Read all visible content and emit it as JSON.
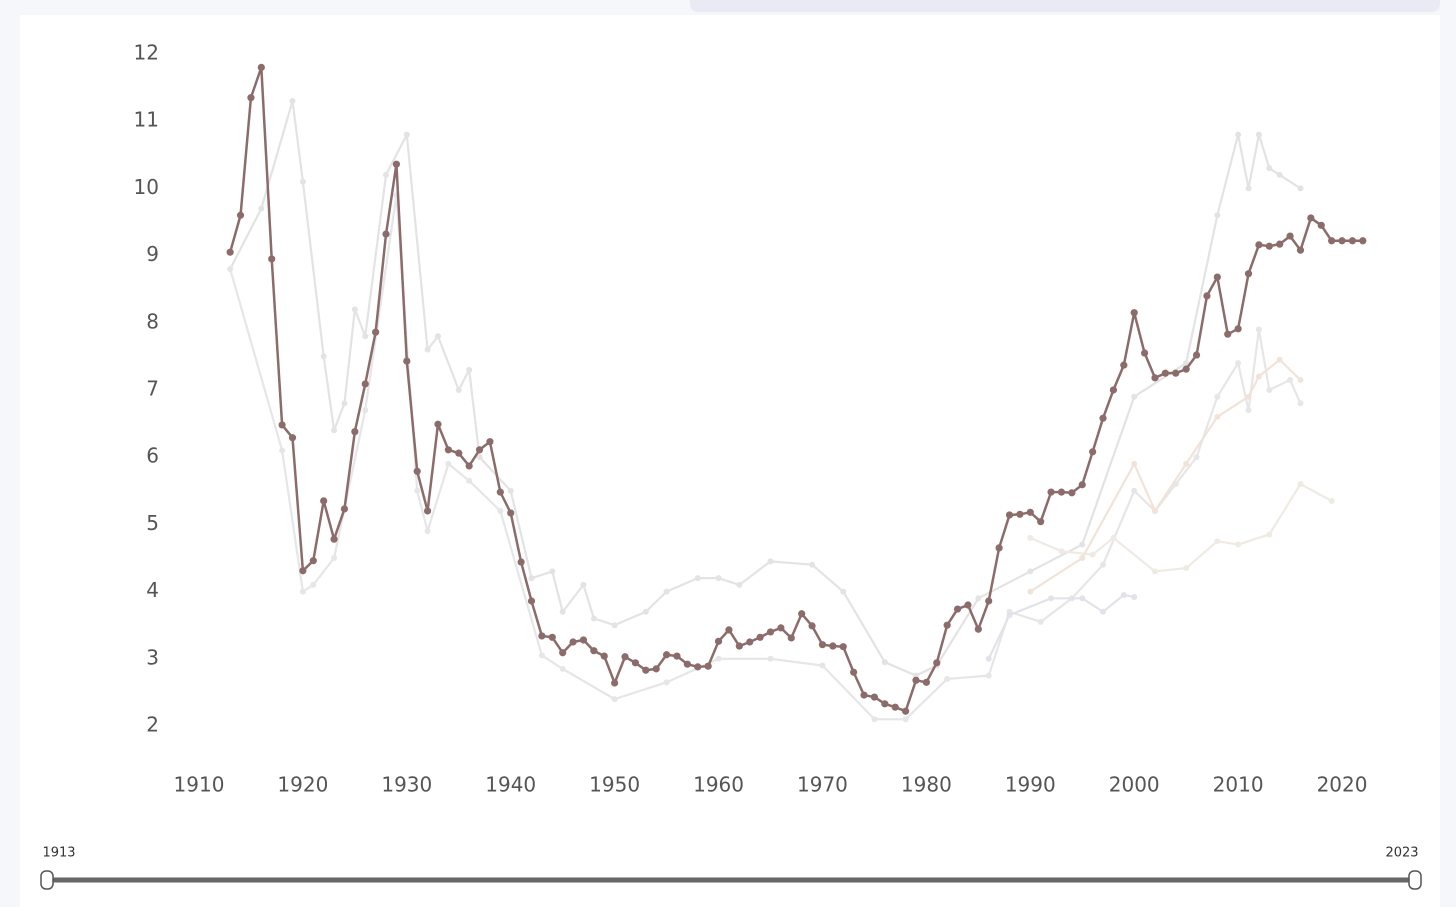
{
  "chart_data": {
    "type": "line",
    "xlim": [
      1907,
      2024
    ],
    "xticks": [
      1910,
      1920,
      1930,
      1940,
      1950,
      1960,
      1970,
      1980,
      1990,
      2000,
      2010,
      2020
    ],
    "ylim": [
      1.5,
      12.3
    ],
    "yticks": [
      2,
      3,
      4,
      5,
      6,
      7,
      8,
      9,
      10,
      11,
      12
    ],
    "series": [
      {
        "color": "#e3e3e3",
        "x": [
          1913,
          1916,
          1919,
          1920,
          1922,
          1923,
          1924,
          1925,
          1926,
          1928,
          1930,
          1932,
          1933,
          1935,
          1936,
          1937,
          1940,
          1942,
          1944,
          1945,
          1947,
          1948,
          1950,
          1953,
          1955,
          1958,
          1960,
          1962,
          1965,
          1969,
          1972,
          1976,
          1979,
          1981,
          1985,
          1990,
          1995,
          2000,
          2005,
          2008,
          2010,
          2011,
          2012,
          2013,
          2014,
          2016
        ],
        "values": [
          8.8,
          9.7,
          11.3,
          10.1,
          7.5,
          6.4,
          6.8,
          8.2,
          7.8,
          10.2,
          10.8,
          7.6,
          7.8,
          7.0,
          7.3,
          6.0,
          5.5,
          4.2,
          4.3,
          3.7,
          4.1,
          3.6,
          3.5,
          3.7,
          4.0,
          4.2,
          4.2,
          4.1,
          4.45,
          4.4,
          4.0,
          2.95,
          2.75,
          2.9,
          3.9,
          4.3,
          4.7,
          6.9,
          7.4,
          9.6,
          10.8,
          10.0,
          10.8,
          10.3,
          10.2,
          10.0
        ]
      },
      {
        "color": "#e6e6e8",
        "x": [
          1913,
          1918,
          1920,
          1921,
          1923,
          1926,
          1929,
          1931,
          1932,
          1934,
          1936,
          1939,
          1943,
          1945,
          1950,
          1955,
          1960,
          1965,
          1970,
          1975,
          1978,
          1982,
          1986,
          1988,
          1991,
          1994,
          1997,
          2000,
          2002,
          2004,
          2006,
          2008,
          2010,
          2011,
          2012,
          2013,
          2015,
          2016
        ],
        "values": [
          8.8,
          6.1,
          4.0,
          4.1,
          4.5,
          6.7,
          9.9,
          5.5,
          4.9,
          5.9,
          5.65,
          5.2,
          3.05,
          2.85,
          2.4,
          2.65,
          3.0,
          3.0,
          2.9,
          2.1,
          2.1,
          2.7,
          2.75,
          3.7,
          3.55,
          3.9,
          4.4,
          5.5,
          5.2,
          5.6,
          6.0,
          6.9,
          7.4,
          6.7,
          7.9,
          7.0,
          7.15,
          6.8
        ]
      },
      {
        "color": "#efebe3",
        "x": [
          1990,
          1993,
          1996,
          1998,
          2002,
          2005,
          2008,
          2010,
          2013,
          2016,
          2019
        ],
        "values": [
          4.8,
          4.6,
          4.55,
          4.8,
          4.3,
          4.35,
          4.75,
          4.7,
          4.85,
          5.6,
          5.35
        ]
      },
      {
        "color": "#e2e3ea",
        "x": [
          1986,
          1988,
          1992,
          1995,
          1997,
          1999,
          2000
        ],
        "values": [
          3.0,
          3.65,
          3.9,
          3.9,
          3.7,
          3.95,
          3.92
        ]
      },
      {
        "color": "#f1e3d8",
        "x": [
          1990,
          1995,
          2000,
          2002,
          2005,
          2008,
          2011,
          2012,
          2014,
          2016
        ],
        "values": [
          4.0,
          4.5,
          5.9,
          5.2,
          5.9,
          6.6,
          6.9,
          7.2,
          7.45,
          7.15
        ]
      },
      {
        "color": "#8c6b6b",
        "x": [
          1913,
          1914,
          1915,
          1916,
          1917,
          1918,
          1919,
          1920,
          1921,
          1922,
          1923,
          1924,
          1925,
          1926,
          1927,
          1928,
          1929,
          1930,
          1931,
          1932,
          1933,
          1934,
          1935,
          1936,
          1937,
          1938,
          1939,
          1940,
          1941,
          1942,
          1943,
          1944,
          1945,
          1946,
          1947,
          1948,
          1949,
          1950,
          1951,
          1952,
          1953,
          1954,
          1955,
          1956,
          1957,
          1958,
          1959,
          1960,
          1961,
          1962,
          1963,
          1964,
          1965,
          1966,
          1967,
          1968,
          1969,
          1970,
          1971,
          1972,
          1973,
          1974,
          1975,
          1976,
          1977,
          1978,
          1979,
          1980,
          1981,
          1982,
          1983,
          1984,
          1985,
          1986,
          1987,
          1988,
          1989,
          1990,
          1991,
          1992,
          1993,
          1994,
          1995,
          1996,
          1997,
          1998,
          1999,
          2000,
          2001,
          2002,
          2003,
          2004,
          2005,
          2006,
          2007,
          2008,
          2009,
          2010,
          2011,
          2012,
          2013,
          2014,
          2015,
          2016,
          2017,
          2018,
          2019,
          2020,
          2021,
          2022
        ],
        "values": [
          9.05,
          9.6,
          11.35,
          11.8,
          8.95,
          6.48,
          6.29,
          4.31,
          4.46,
          5.35,
          4.78,
          5.23,
          6.38,
          7.09,
          7.86,
          9.32,
          10.36,
          7.43,
          5.79,
          5.2,
          6.49,
          6.11,
          6.06,
          5.87,
          6.11,
          6.23,
          5.48,
          5.17,
          4.44,
          3.86,
          3.34,
          3.32,
          3.09,
          3.25,
          3.28,
          3.12,
          3.04,
          2.64,
          3.03,
          2.94,
          2.83,
          2.85,
          3.06,
          3.04,
          2.92,
          2.88,
          2.89,
          3.26,
          3.43,
          3.19,
          3.25,
          3.32,
          3.4,
          3.46,
          3.31,
          3.67,
          3.49,
          3.21,
          3.19,
          3.18,
          2.8,
          2.46,
          2.43,
          2.33,
          2.28,
          2.22,
          2.68,
          2.65,
          2.94,
          3.5,
          3.74,
          3.8,
          3.44,
          3.86,
          4.65,
          5.14,
          5.15,
          5.18,
          5.04,
          5.48,
          5.48,
          5.47,
          5.59,
          6.08,
          6.58,
          7.0,
          7.37,
          8.15,
          7.55,
          7.18,
          7.25,
          7.25,
          7.31,
          7.52,
          8.4,
          8.68,
          7.83,
          7.91,
          8.73,
          9.16,
          9.14,
          9.17,
          9.29,
          9.08,
          9.56,
          9.45,
          9.22,
          9.22,
          9.22,
          9.22
        ]
      }
    ]
  },
  "slider": {
    "start": 1913,
    "end": 2023
  }
}
